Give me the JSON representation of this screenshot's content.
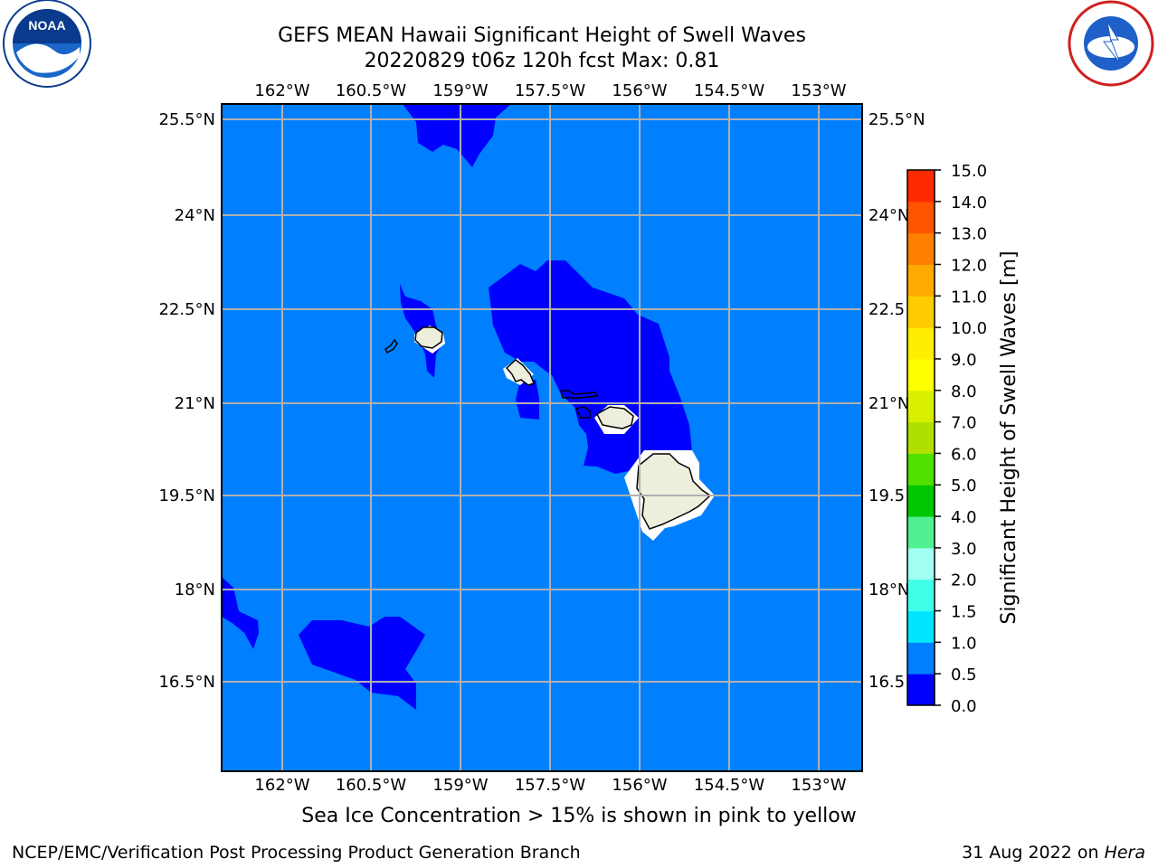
{
  "header": {
    "title_line1": "GEFS MEAN Hawaii Significant Height of Swell Waves",
    "title_line2": "20220829 t06z 120h fcst   Max: 0.81"
  },
  "logos": {
    "left": "noaa-logo",
    "right": "national-weather-service-logo"
  },
  "map": {
    "lon_labels": [
      "162°W",
      "160.5°W",
      "159°W",
      "157.5°W",
      "156°W",
      "154.5°W",
      "153°W"
    ],
    "lat_labels": [
      "25.5°N",
      "24°N",
      "22.5°N",
      "21°N",
      "19.5°N",
      "18°N",
      "16.5°N"
    ],
    "right_lat_labels": [
      "25.5°N",
      "24°N",
      "22.5",
      "21°N",
      "19.5",
      "18°N",
      "16.5"
    ],
    "ocean_color": "#0080ff",
    "low_color": "#0000ff",
    "land_color": "#eeeedd"
  },
  "colorbar": {
    "label": "Significant Height of Swell Waves [m]",
    "ticks": [
      "0.0",
      "0.5",
      "1.0",
      "1.5",
      "2.0",
      "3.0",
      "4.0",
      "5.0",
      "6.0",
      "7.0",
      "8.0",
      "9.0",
      "10.0",
      "11.0",
      "12.0",
      "13.0",
      "14.0",
      "15.0"
    ],
    "colors": [
      "#0000ff",
      "#0080ff",
      "#00e5ff",
      "#40ffe8",
      "#a0fff0",
      "#50f090",
      "#00c800",
      "#50e000",
      "#b0e000",
      "#d8f000",
      "#ffff00",
      "#ffee00",
      "#ffcc00",
      "#ffaa00",
      "#ff8000",
      "#ff5500",
      "#ff2a00"
    ]
  },
  "caption": "Sea Ice Concentration > 15% is shown in pink to yellow",
  "footer": {
    "left": "NCEP/EMC/Verification Post Processing Product Generation Branch",
    "right_date": "31 Aug 2022 on ",
    "right_host": "Hera"
  }
}
